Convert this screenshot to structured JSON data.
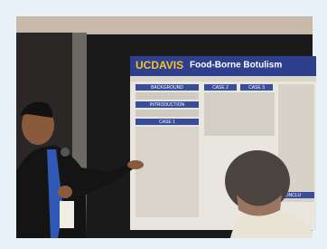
{
  "poster": {
    "logo": "UCDAVIS",
    "title": "Food-Borne Botulism",
    "sections": [
      "BACKGROUND",
      "INTRODUCTION",
      "CASE 1",
      "CASE 2",
      "CASE 3",
      "CONCLU"
    ]
  }
}
